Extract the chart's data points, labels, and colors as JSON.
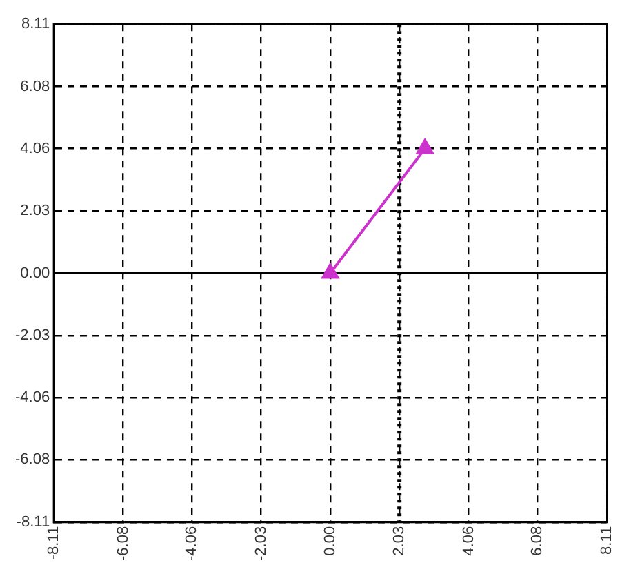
{
  "chart_data": {
    "type": "line",
    "x": [
      0,
      2.78
    ],
    "series": [
      {
        "color": "#cc33cc",
        "values": [
          0,
          4.06
        ]
      }
    ],
    "xlim": [
      -8.11,
      8.11
    ],
    "ylim": [
      -8.11,
      8.11
    ],
    "xticks": [
      -8.11,
      -6.08,
      -4.06,
      -2.03,
      {
        "value": 0,
        "label": "0.00"
      },
      2.03,
      4.06,
      6.08,
      8.11
    ],
    "yticks": [
      -8.11,
      -6.08,
      -4.06,
      -2.03,
      {
        "value": 0,
        "label": "0.00"
      },
      2.03,
      4.06,
      6.08,
      8.11
    ],
    "ref_lines": [
      {
        "axis": "x",
        "value": 2.03,
        "color": "#000000",
        "line_style": "dotted"
      },
      {
        "axis": "y",
        "value": 0,
        "color": "#000000",
        "line_style": "solid"
      }
    ],
    "grid": true,
    "marker": "triangle",
    "line_style": "solid",
    "legend": false
  }
}
